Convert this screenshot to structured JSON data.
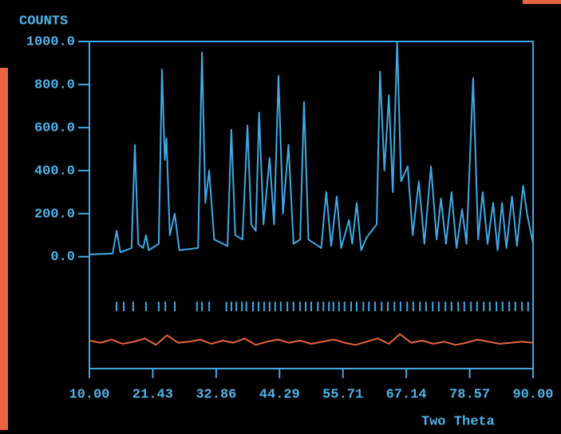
{
  "chart_data": {
    "type": "line",
    "y_label": "COUNTS",
    "x_label": "Two Theta",
    "xlim": [
      10,
      90
    ],
    "xticks": [
      {
        "value": 10,
        "label": "10.00"
      },
      {
        "value": 21.43,
        "label": "21.43"
      },
      {
        "value": 32.86,
        "label": "32.86"
      },
      {
        "value": 44.29,
        "label": "44.29"
      },
      {
        "value": 55.71,
        "label": "55.71"
      },
      {
        "value": 67.14,
        "label": "67.14"
      },
      {
        "value": 78.57,
        "label": "78.57"
      },
      {
        "value": 90,
        "label": "90.00"
      }
    ],
    "ylim": [
      -520,
      1000
    ],
    "yticks": [
      {
        "value": 0,
        "label": "0.0"
      },
      {
        "value": 200,
        "label": "200.0"
      },
      {
        "value": 400,
        "label": "400.0"
      },
      {
        "value": 600,
        "label": "600.0"
      },
      {
        "value": 800,
        "label": "800.0"
      },
      {
        "value": 1000,
        "label": "1000.0"
      }
    ],
    "series": [
      {
        "color": "#3fa9e6",
        "x": [
          10.0,
          14.2,
          14.9,
          15.6,
          17.6,
          18.2,
          18.8,
          19.7,
          20.2,
          20.7,
          22.5,
          23.1,
          23.6,
          23.9,
          24.5,
          25.4,
          26.2,
          29.6,
          30.3,
          30.9,
          31.6,
          32.5,
          34.9,
          35.6,
          36.3,
          37.6,
          38.5,
          39.2,
          40.0,
          40.6,
          41.4,
          42.5,
          43.3,
          44.1,
          44.9,
          45.9,
          46.8,
          48.0,
          48.7,
          49.5,
          51.8,
          52.7,
          53.6,
          54.6,
          55.4,
          56.8,
          57.4,
          58.2,
          59.0,
          60.0,
          61.8,
          62.4,
          63.2,
          64.0,
          64.7,
          65.5,
          66.2,
          67.4,
          68.3,
          69.4,
          70.4,
          71.6,
          72.6,
          73.4,
          74.3,
          75.3,
          76.2,
          77.2,
          78.0,
          79.2,
          80.1,
          80.9,
          81.8,
          82.8,
          83.6,
          84.4,
          85.2,
          86.2,
          87.1,
          88.2,
          88.9,
          90.0
        ],
        "values": [
          10,
          15,
          120,
          20,
          40,
          520,
          60,
          40,
          100,
          30,
          60,
          870,
          450,
          550,
          100,
          200,
          30,
          40,
          950,
          250,
          400,
          80,
          50,
          590,
          100,
          80,
          610,
          150,
          120,
          670,
          150,
          460,
          150,
          840,
          200,
          520,
          60,
          80,
          720,
          80,
          40,
          300,
          50,
          280,
          40,
          170,
          60,
          250,
          30,
          90,
          150,
          860,
          400,
          750,
          300,
          1000,
          350,
          420,
          100,
          350,
          60,
          420,
          80,
          270,
          60,
          300,
          40,
          220,
          60,
          830,
          80,
          300,
          60,
          250,
          30,
          250,
          40,
          280,
          50,
          330,
          200,
          60
        ]
      },
      {
        "color": "#e8643c",
        "x": [
          10,
          12,
          14,
          16,
          18,
          20,
          22,
          24,
          26,
          28,
          30,
          32,
          34,
          36,
          38,
          40,
          42,
          44,
          46,
          48,
          50,
          52,
          54,
          56,
          58,
          60,
          62,
          64,
          66,
          68,
          70,
          72,
          74,
          76,
          78,
          80,
          82,
          84,
          86,
          88,
          90
        ],
        "values": [
          -390,
          -400,
          -385,
          -405,
          -395,
          -380,
          -410,
          -365,
          -400,
          -395,
          -385,
          -405,
          -390,
          -400,
          -380,
          -410,
          -395,
          -385,
          -400,
          -390,
          -405,
          -395,
          -385,
          -400,
          -410,
          -395,
          -380,
          -405,
          -360,
          -400,
          -390,
          -405,
          -395,
          -410,
          -400,
          -385,
          -395,
          -405,
          -400,
          -395,
          -400
        ]
      }
    ],
    "reflections": [
      14.9,
      16.2,
      17.9,
      20.2,
      22.5,
      23.7,
      25.4,
      29.4,
      30.3,
      31.6,
      34.7,
      35.6,
      36.5,
      37.5,
      38.3,
      39.5,
      40.5,
      41.5,
      42.5,
      43.5,
      44.5,
      45.7,
      46.8,
      48.0,
      49.0,
      50.0,
      51.2,
      52.2,
      53.2,
      54.0,
      55.0,
      56.0,
      57.2,
      58.2,
      59.4,
      60.4,
      61.5,
      62.7,
      63.8,
      65.0,
      66.1,
      67.3,
      68.4,
      69.6,
      70.7,
      71.9,
      73.0,
      74.2,
      75.3,
      76.5,
      77.6,
      78.8,
      79.9,
      81.1,
      82.2,
      83.4,
      84.5,
      85.7,
      86.8,
      88.0,
      89.1
    ],
    "reflection_color": "#3fa9e6",
    "axis_color": "#3fa9e6"
  }
}
